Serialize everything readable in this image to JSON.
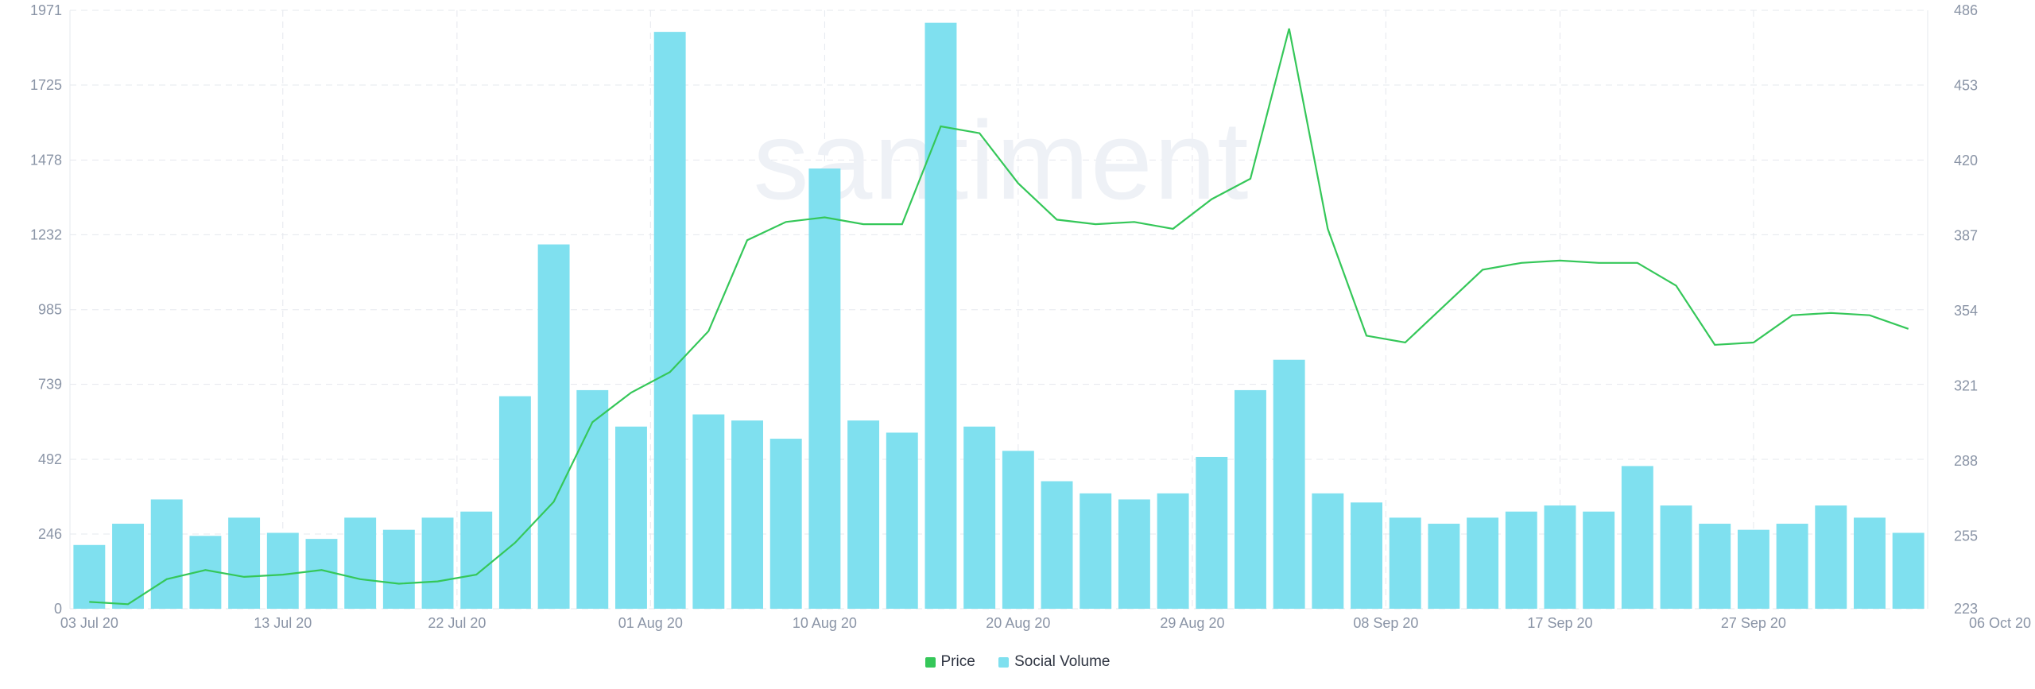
{
  "watermark": "santiment",
  "colors": {
    "price": "#35c759",
    "volume": "#7fe0ef",
    "grid": "#e5e8ee",
    "tick": "#8a94a6"
  },
  "legend": [
    {
      "label": "Price",
      "color": "#35c759"
    },
    {
      "label": "Social Volume",
      "color": "#7fe0ef"
    }
  ],
  "chart_data": {
    "type": "bar",
    "grid": true,
    "legend_position": "bottom-center",
    "x_ticks": [
      "03 Jul 20",
      "13 Jul 20",
      "22 Jul 20",
      "01 Aug 20",
      "10 Aug 20",
      "20 Aug 20",
      "29 Aug 20",
      "08 Sep 20",
      "17 Sep 20",
      "27 Sep 20",
      "06 Oct 20"
    ],
    "left_axis": {
      "ticks": [
        0,
        246,
        492,
        739,
        985,
        1232,
        1478,
        1725,
        1971
      ],
      "ylim": [
        0,
        1971
      ]
    },
    "right_axis": {
      "ticks": [
        223,
        255,
        288,
        321,
        354,
        387,
        420,
        453,
        486
      ],
      "ylim": [
        223,
        486
      ]
    },
    "series": [
      {
        "name": "Price",
        "type": "line",
        "axis": "right",
        "x": [
          "2020-07-03",
          "2020-07-05",
          "2020-07-07",
          "2020-07-09",
          "2020-07-11",
          "2020-07-13",
          "2020-07-15",
          "2020-07-17",
          "2020-07-19",
          "2020-07-21",
          "2020-07-23",
          "2020-07-25",
          "2020-07-27",
          "2020-07-29",
          "2020-07-31",
          "2020-08-02",
          "2020-08-04",
          "2020-08-06",
          "2020-08-08",
          "2020-08-10",
          "2020-08-12",
          "2020-08-14",
          "2020-08-16",
          "2020-08-18",
          "2020-08-20",
          "2020-08-22",
          "2020-08-24",
          "2020-08-26",
          "2020-08-28",
          "2020-08-30",
          "2020-09-01",
          "2020-09-03",
          "2020-09-05",
          "2020-09-07",
          "2020-09-09",
          "2020-09-11",
          "2020-09-13",
          "2020-09-15",
          "2020-09-17",
          "2020-09-19",
          "2020-09-21",
          "2020-09-23",
          "2020-09-25",
          "2020-09-27",
          "2020-09-29",
          "2020-10-01",
          "2020-10-03",
          "2020-10-05"
        ],
        "values": [
          226,
          225,
          236,
          240,
          237,
          238,
          240,
          236,
          234,
          235,
          238,
          252,
          270,
          305,
          318,
          327,
          345,
          385,
          393,
          395,
          392,
          392,
          435,
          432,
          410,
          394,
          392,
          393,
          390,
          403,
          412,
          478,
          390,
          343,
          340,
          356,
          372,
          375,
          376,
          375,
          375,
          365,
          339,
          340,
          352,
          353,
          352,
          346
        ]
      },
      {
        "name": "Social Volume",
        "type": "bar",
        "axis": "left",
        "x": [
          "2020-07-03",
          "2020-07-05",
          "2020-07-07",
          "2020-07-09",
          "2020-07-11",
          "2020-07-13",
          "2020-07-15",
          "2020-07-17",
          "2020-07-19",
          "2020-07-21",
          "2020-07-23",
          "2020-07-25",
          "2020-07-27",
          "2020-07-29",
          "2020-07-31",
          "2020-08-02",
          "2020-08-04",
          "2020-08-06",
          "2020-08-08",
          "2020-08-10",
          "2020-08-12",
          "2020-08-14",
          "2020-08-16",
          "2020-08-18",
          "2020-08-20",
          "2020-08-22",
          "2020-08-24",
          "2020-08-26",
          "2020-08-28",
          "2020-08-30",
          "2020-09-01",
          "2020-09-03",
          "2020-09-05",
          "2020-09-07",
          "2020-09-09",
          "2020-09-11",
          "2020-09-13",
          "2020-09-15",
          "2020-09-17",
          "2020-09-19",
          "2020-09-21",
          "2020-09-23",
          "2020-09-25",
          "2020-09-27",
          "2020-09-29",
          "2020-10-01",
          "2020-10-03",
          "2020-10-05"
        ],
        "values": [
          210,
          280,
          360,
          240,
          300,
          250,
          230,
          300,
          260,
          300,
          320,
          700,
          1200,
          720,
          600,
          1900,
          640,
          620,
          560,
          1450,
          620,
          580,
          1930,
          600,
          520,
          420,
          380,
          360,
          380,
          500,
          720,
          820,
          380,
          350,
          300,
          280,
          300,
          320,
          340,
          320,
          470,
          340,
          280,
          260,
          280,
          340,
          300,
          250
        ]
      }
    ]
  }
}
